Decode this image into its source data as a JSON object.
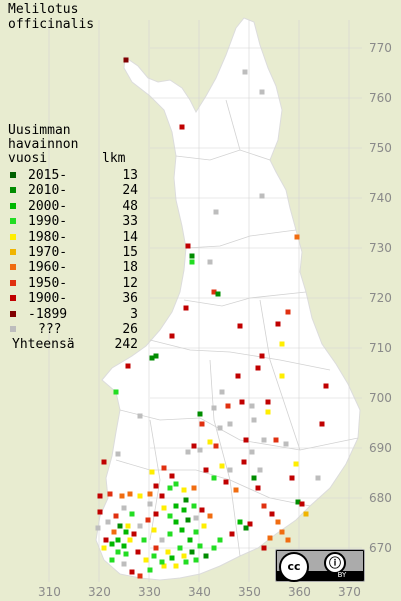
{
  "title_lines": [
    "Melilotus",
    "officinalis"
  ],
  "legend": {
    "heading_lines": [
      "Uusimman",
      "havainnon"
    ],
    "col_label": "vuosi",
    "col_count": "lkm",
    "rows": [
      {
        "label": "2015-",
        "count": "13",
        "color": "#006000"
      },
      {
        "label": "2010-",
        "count": "24",
        "color": "#008c00"
      },
      {
        "label": "2000-",
        "count": "48",
        "color": "#00b800"
      },
      {
        "label": "1990-",
        "count": "33",
        "color": "#22dd22"
      },
      {
        "label": "1980-",
        "count": "14",
        "color": "#ffee00"
      },
      {
        "label": "1970-",
        "count": "15",
        "color": "#f0b400"
      },
      {
        "label": "1960-",
        "count": "18",
        "color": "#f06c10"
      },
      {
        "label": "1950-",
        "count": "12",
        "color": "#e03010"
      },
      {
        "label": "1900-",
        "count": "36",
        "color": "#c00000"
      },
      {
        "label": "-1899",
        "count": "3",
        "color": "#800000"
      },
      {
        "label": "???",
        "count": "26",
        "color": "#bdbdbd"
      }
    ],
    "total_label": "Yhteensä",
    "total_count": "242"
  },
  "grid_labels": {
    "north": [
      "770",
      "760",
      "750",
      "740",
      "730",
      "720",
      "710",
      "700",
      "690",
      "680",
      "670"
    ],
    "east": [
      "310",
      "320",
      "330",
      "340",
      "350",
      "360",
      "370"
    ]
  },
  "license": {
    "cc": "cc",
    "by": "BY"
  },
  "colors": {
    "land": "#ffffff",
    "sea": "#e8ecd0",
    "gridline": "#d4d4d4",
    "region_border": "#d0d0d0"
  }
}
